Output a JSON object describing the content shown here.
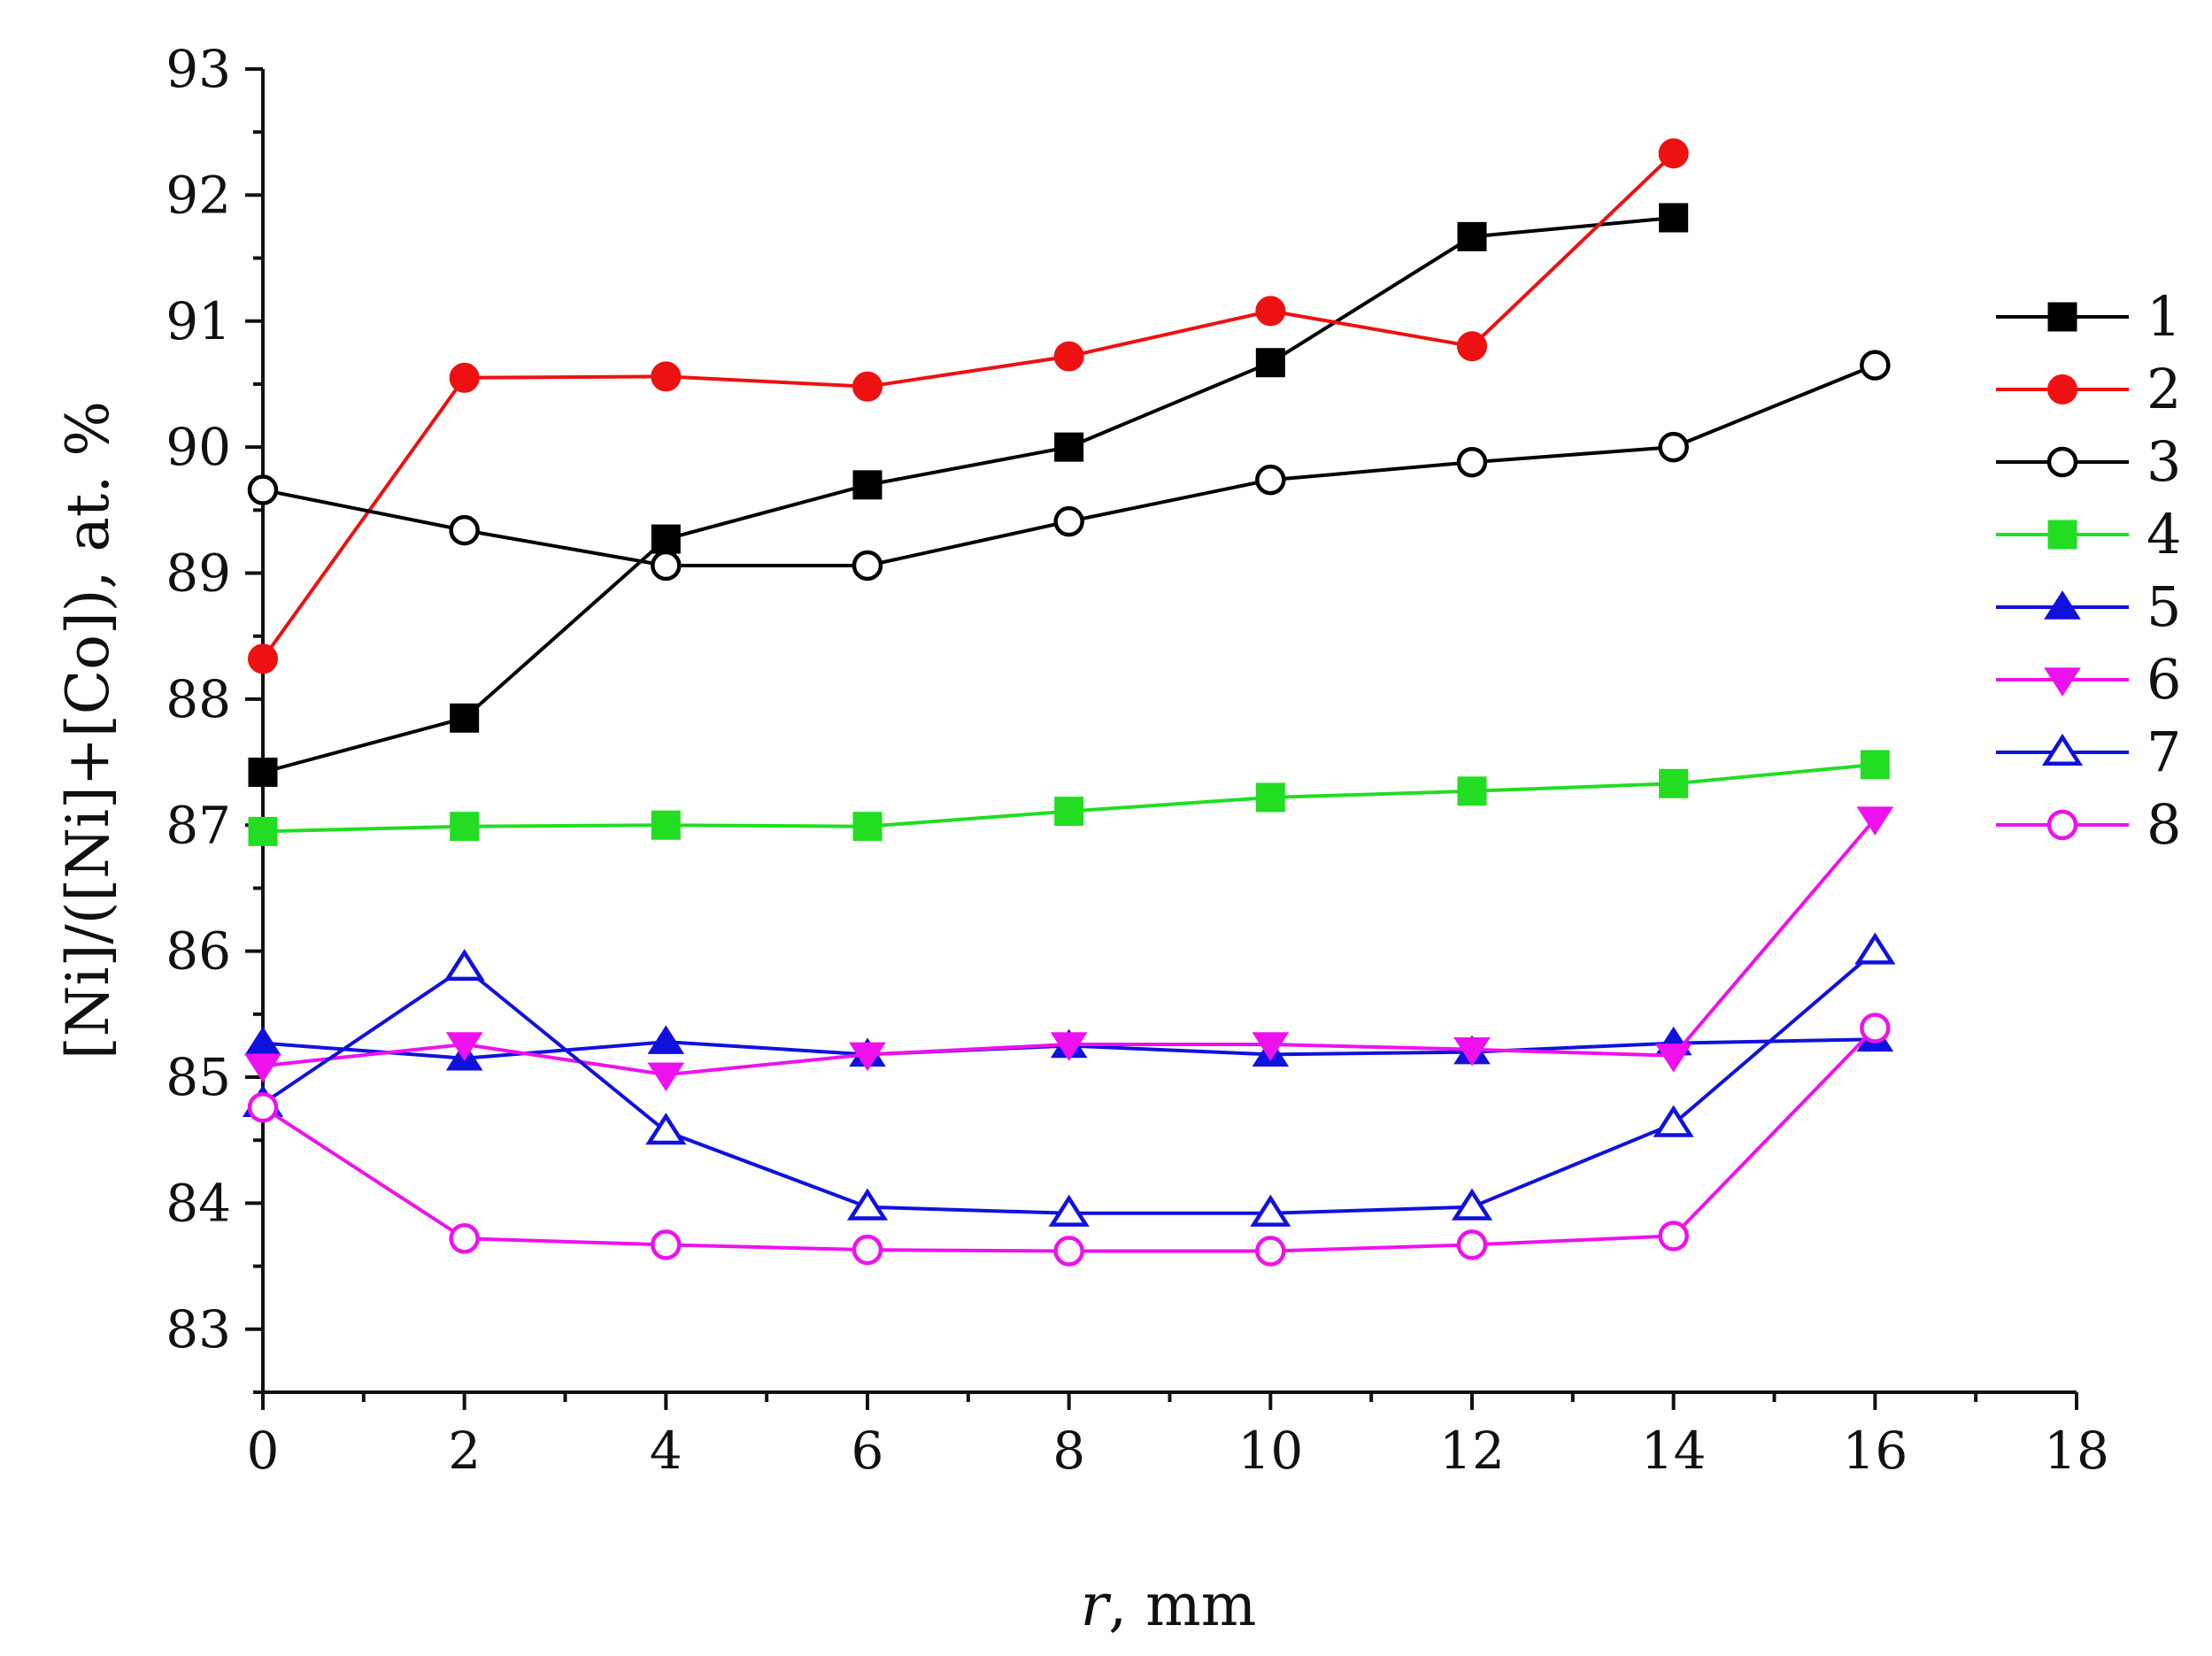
{
  "chart_data": {
    "type": "line",
    "title": "",
    "xlabel": "r, mm",
    "xlabel_italic": "r",
    "xlabel_rest": ", mm",
    "ylabel": "[Ni]/([Ni]+[Co]), at. %",
    "xlim": [
      0,
      18
    ],
    "ylim": [
      82.5,
      93
    ],
    "xticks": [
      0,
      2,
      4,
      6,
      8,
      10,
      12,
      14,
      16,
      18
    ],
    "yticks": [
      83,
      84,
      85,
      86,
      87,
      88,
      89,
      90,
      91,
      92,
      93
    ],
    "grid": false,
    "legend_position": "right",
    "series": [
      {
        "name": "1",
        "color": "#000000",
        "marker": "square-filled",
        "x": [
          0,
          2,
          4,
          6,
          8,
          10,
          12,
          14
        ],
        "y": [
          87.42,
          87.85,
          89.27,
          89.7,
          90.0,
          90.67,
          91.67,
          91.82
        ]
      },
      {
        "name": "2",
        "color": "#ee1111",
        "marker": "circle-filled",
        "x": [
          0,
          2,
          4,
          6,
          8,
          10,
          12,
          14
        ],
        "y": [
          88.32,
          90.55,
          90.56,
          90.48,
          90.72,
          91.08,
          90.8,
          92.33
        ]
      },
      {
        "name": "3",
        "color": "#000000",
        "marker": "circle-open",
        "x": [
          0,
          2,
          4,
          6,
          8,
          10,
          12,
          14,
          16
        ],
        "y": [
          89.66,
          89.34,
          89.06,
          89.06,
          89.41,
          89.74,
          89.88,
          90.0,
          90.65
        ]
      },
      {
        "name": "4",
        "color": "#22dd22",
        "marker": "square-filled",
        "x": [
          0,
          2,
          4,
          6,
          8,
          10,
          12,
          14,
          16
        ],
        "y": [
          86.95,
          86.99,
          87.0,
          86.99,
          87.11,
          87.22,
          87.27,
          87.33,
          87.48
        ]
      },
      {
        "name": "5",
        "color": "#1111dd",
        "marker": "triangle-up-filled",
        "x": [
          0,
          2,
          4,
          6,
          8,
          10,
          12,
          14,
          16
        ],
        "y": [
          85.27,
          85.15,
          85.28,
          85.18,
          85.25,
          85.18,
          85.2,
          85.27,
          85.3
        ]
      },
      {
        "name": "6",
        "color": "#ee11ee",
        "marker": "triangle-down-filled",
        "x": [
          0,
          2,
          4,
          6,
          8,
          10,
          12,
          14,
          16
        ],
        "y": [
          85.09,
          85.26,
          85.02,
          85.18,
          85.26,
          85.26,
          85.22,
          85.17,
          87.05
        ]
      },
      {
        "name": "7",
        "color": "#1111dd",
        "marker": "triangle-up-open",
        "x": [
          0,
          2,
          4,
          6,
          8,
          10,
          12,
          14,
          16
        ],
        "y": [
          84.79,
          85.87,
          84.57,
          83.97,
          83.92,
          83.92,
          83.97,
          84.63,
          86.0
        ]
      },
      {
        "name": "8",
        "color": "#ee11ee",
        "marker": "circle-open",
        "x": [
          0,
          2,
          4,
          6,
          8,
          10,
          12,
          14,
          16
        ],
        "y": [
          84.76,
          83.72,
          83.67,
          83.63,
          83.62,
          83.62,
          83.67,
          83.74,
          85.39
        ]
      }
    ]
  }
}
